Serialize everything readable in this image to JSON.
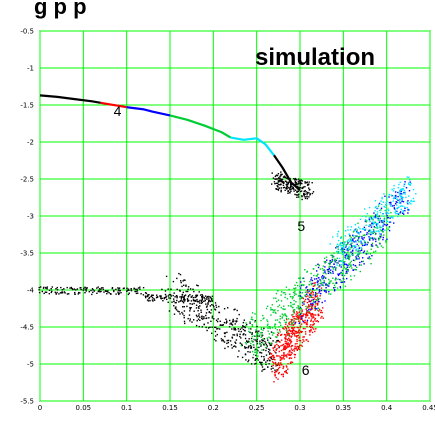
{
  "header_text": "g         p                p",
  "chart_data": {
    "type": "scatter",
    "title": "",
    "xlabel": "",
    "ylabel": "",
    "xlim": [
      0,
      0.45
    ],
    "ylim": [
      -5.5,
      -0.5
    ],
    "grid": true,
    "grid_color": "#00ff00",
    "x_ticks": [
      "0",
      "0.05",
      "0.1",
      "0.15",
      "0.2",
      "0.25",
      "0.3",
      "0.35",
      "0.4",
      "0.45"
    ],
    "x_tick_values": [
      0,
      0.05,
      0.1,
      0.15,
      0.2,
      0.25,
      0.3,
      0.35,
      0.4,
      0.45
    ],
    "y_ticks": [
      "-0.5",
      "-1",
      "-1.5",
      "-2",
      "-2.5",
      "-3",
      "-3.5",
      "-4",
      "-4.5",
      "-5",
      "-5.5"
    ],
    "y_tick_values": [
      -0.5,
      -1,
      -1.5,
      -2,
      -2.5,
      -3,
      -3.5,
      -4,
      -4.5,
      -5,
      -5.5
    ],
    "inset_label": "simulation",
    "annotations": [
      {
        "text": "4",
        "x": 0.085,
        "y": -1.65
      },
      {
        "text": "5",
        "x": 0.297,
        "y": -3.2
      },
      {
        "text": "6",
        "x": 0.302,
        "y": -5.15
      }
    ],
    "series": [
      {
        "color": "#000000",
        "points": [
          [
            0.0,
            -1.37
          ],
          [
            0.02,
            -1.39
          ],
          [
            0.04,
            -1.42
          ],
          [
            0.06,
            -1.45
          ],
          [
            0.07,
            -1.47
          ]
        ]
      },
      {
        "color": "#ff0000",
        "points": [
          [
            0.07,
            -1.47
          ],
          [
            0.08,
            -1.49
          ],
          [
            0.09,
            -1.51
          ],
          [
            0.1,
            -1.53
          ]
        ]
      },
      {
        "color": "#0000ff",
        "points": [
          [
            0.1,
            -1.53
          ],
          [
            0.12,
            -1.56
          ],
          [
            0.13,
            -1.59
          ],
          [
            0.15,
            -1.64
          ]
        ]
      },
      {
        "color": "#00cc33",
        "points": [
          [
            0.15,
            -1.64
          ],
          [
            0.17,
            -1.7
          ],
          [
            0.19,
            -1.78
          ],
          [
            0.21,
            -1.87
          ],
          [
            0.22,
            -1.94
          ]
        ]
      },
      {
        "color": "#00e5ff",
        "points": [
          [
            0.22,
            -1.94
          ],
          [
            0.235,
            -1.97
          ],
          [
            0.25,
            -1.95
          ],
          [
            0.26,
            -2.03
          ],
          [
            0.27,
            -2.18
          ]
        ]
      },
      {
        "color": "#000000",
        "points": [
          [
            0.27,
            -2.18
          ],
          [
            0.28,
            -2.35
          ],
          [
            0.29,
            -2.55
          ],
          [
            0.3,
            -2.65
          ]
        ]
      }
    ]
  }
}
